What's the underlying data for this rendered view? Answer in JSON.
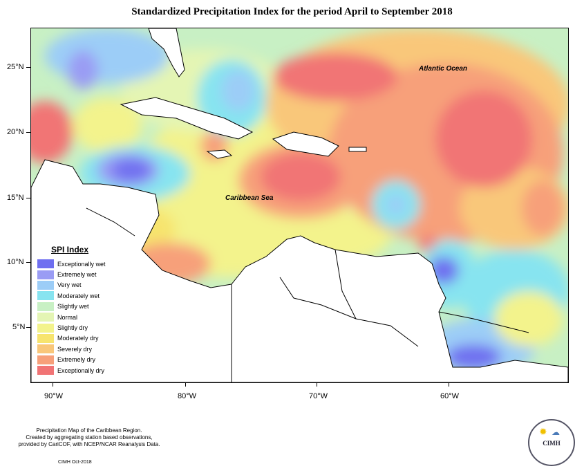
{
  "title": "Standardized Precipitation Index for the period April to September 2018",
  "axes": {
    "lat_labels": [
      "25°N",
      "20°N",
      "15°N",
      "10°N",
      "5°N"
    ],
    "lon_labels": [
      "90°W",
      "80°W",
      "70°W",
      "60°W"
    ]
  },
  "ocean_labels": {
    "atlantic": "Atlantic Ocean",
    "caribbean": "Caribbean Sea"
  },
  "legend": {
    "title": "SPI Index",
    "items": [
      {
        "label": "Exceptionally wet",
        "color": "#6f6ff0"
      },
      {
        "label": "Extremely wet",
        "color": "#9a9cf4"
      },
      {
        "label": "Very wet",
        "color": "#9ccdf7"
      },
      {
        "label": "Moderately wet",
        "color": "#87e4f0"
      },
      {
        "label": "Slightly wet",
        "color": "#c8f0c4"
      },
      {
        "label": "Normal",
        "color": "#e4f5b4"
      },
      {
        "label": "Slightly dry",
        "color": "#f3f38c"
      },
      {
        "label": "Moderately dry",
        "color": "#f7e46e"
      },
      {
        "label": "Severely dry",
        "color": "#f9c77a"
      },
      {
        "label": "Extremely dry",
        "color": "#f7a07a"
      },
      {
        "label": "Exceptionally dry",
        "color": "#f17475"
      }
    ]
  },
  "footer": {
    "line1": "Precipitation Map of the Caribbean Region.",
    "line2": "Created by aggregating station based observations,",
    "line3": "provided by CariCOF, with NCEP/NCAR Reanalysis Data.",
    "date": "CIMH Oct-2018"
  },
  "logo": {
    "text": "CIMH"
  }
}
